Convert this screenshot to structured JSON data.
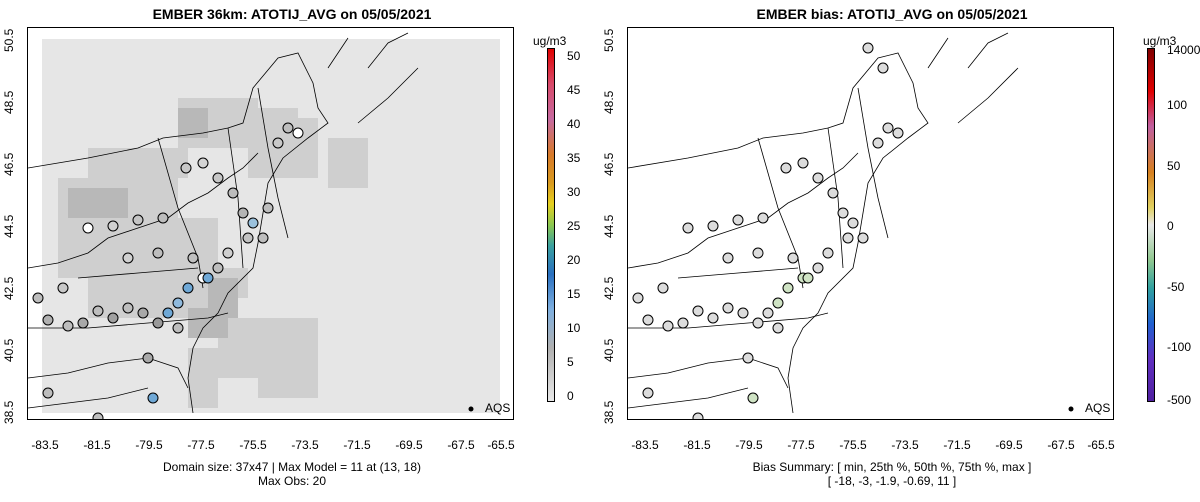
{
  "left_panel": {
    "title": "EMBER 36km: ATOTIJ_AVG on 05/05/2021",
    "footer_line1": "Domain size: 37x47 | Max Model = 11 at (13, 18)",
    "footer_line2": "Max Obs: 20",
    "colorbar_unit": "ug/m3",
    "colorbar_ticks": [
      "50",
      "45",
      "40",
      "35",
      "30",
      "25",
      "20",
      "15",
      "10",
      "5",
      "0"
    ],
    "legend_label": "AQS"
  },
  "right_panel": {
    "title": "EMBER bias: ATOTIJ_AVG on 05/05/2021",
    "footer_line1": "Bias Summary: [ min, 25th %, 50th %, 75th %, max ]",
    "footer_line2": "[ -18,   -3,   -1.9,   -0.69,   11 ]",
    "colorbar_unit": "ug/m3",
    "colorbar_ticks": [
      "14000",
      "100",
      "50",
      "0",
      "-50",
      "-100",
      "-500"
    ],
    "legend_label": "AQS"
  },
  "axes": {
    "x_ticks": [
      "-83.5",
      "-81.5",
      "-79.5",
      "-77.5",
      "-75.5",
      "-73.5",
      "-71.5",
      "-69.5",
      "-67.5",
      "-65.5"
    ],
    "y_ticks": [
      "50.5",
      "48.5",
      "46.5",
      "44.5",
      "42.5",
      "40.5",
      "38.5"
    ]
  },
  "colors": {
    "grid_light": "#e6e6e6",
    "grid_mid": "#cfcfcf",
    "grid_dark": "#b4b4b4",
    "obs_gray": "#bdbdbd",
    "obs_blue": "#6fa8d6",
    "bias_point": "#d9d9d9",
    "bias_green": "#cfe3c4"
  }
}
